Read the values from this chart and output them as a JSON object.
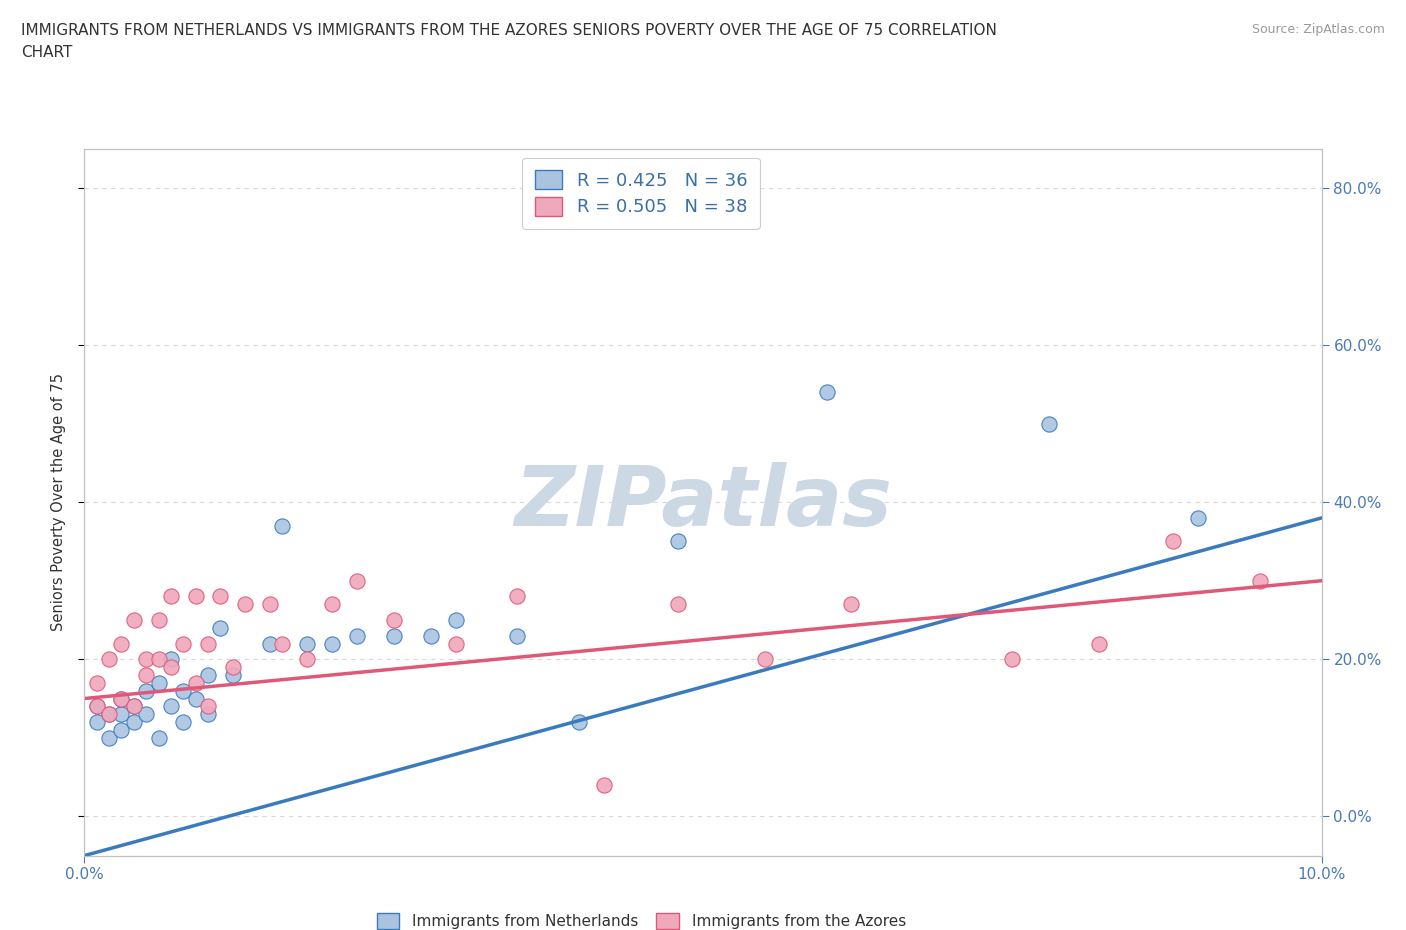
{
  "title_line1": "IMMIGRANTS FROM NETHERLANDS VS IMMIGRANTS FROM THE AZORES SENIORS POVERTY OVER THE AGE OF 75 CORRELATION",
  "title_line2": "CHART",
  "source_text": "Source: ZipAtlas.com",
  "ylabel": "Seniors Poverty Over the Age of 75",
  "xlim": [
    0.0,
    0.1
  ],
  "ylim": [
    -0.05,
    0.85
  ],
  "ytick_values": [
    0.0,
    0.2,
    0.4,
    0.6,
    0.8
  ],
  "xtick_values": [
    0.0,
    0.1
  ],
  "netherlands_color": "#aac4e0",
  "azores_color": "#f0a8bc",
  "netherlands_line_color": "#3a7abf",
  "azores_line_color": "#e05878",
  "netherlands_R": 0.425,
  "netherlands_N": 36,
  "azores_R": 0.505,
  "azores_N": 38,
  "netherlands_scatter_x": [
    0.001,
    0.001,
    0.002,
    0.002,
    0.003,
    0.003,
    0.003,
    0.004,
    0.004,
    0.005,
    0.005,
    0.006,
    0.006,
    0.007,
    0.007,
    0.008,
    0.008,
    0.009,
    0.01,
    0.01,
    0.011,
    0.012,
    0.015,
    0.016,
    0.018,
    0.02,
    0.022,
    0.025,
    0.028,
    0.03,
    0.035,
    0.04,
    0.048,
    0.06,
    0.078,
    0.09
  ],
  "netherlands_scatter_y": [
    0.14,
    0.12,
    0.13,
    0.1,
    0.13,
    0.15,
    0.11,
    0.14,
    0.12,
    0.13,
    0.16,
    0.1,
    0.17,
    0.2,
    0.14,
    0.16,
    0.12,
    0.15,
    0.13,
    0.18,
    0.24,
    0.18,
    0.22,
    0.37,
    0.22,
    0.22,
    0.23,
    0.23,
    0.23,
    0.25,
    0.23,
    0.12,
    0.35,
    0.54,
    0.5,
    0.38
  ],
  "azores_scatter_x": [
    0.001,
    0.001,
    0.002,
    0.002,
    0.003,
    0.003,
    0.004,
    0.004,
    0.005,
    0.005,
    0.006,
    0.006,
    0.007,
    0.007,
    0.008,
    0.009,
    0.009,
    0.01,
    0.01,
    0.011,
    0.012,
    0.013,
    0.015,
    0.016,
    0.018,
    0.02,
    0.022,
    0.025,
    0.03,
    0.035,
    0.042,
    0.048,
    0.055,
    0.062,
    0.075,
    0.082,
    0.088,
    0.095
  ],
  "azores_scatter_y": [
    0.14,
    0.17,
    0.13,
    0.2,
    0.15,
    0.22,
    0.14,
    0.25,
    0.18,
    0.2,
    0.2,
    0.25,
    0.28,
    0.19,
    0.22,
    0.17,
    0.28,
    0.22,
    0.14,
    0.28,
    0.19,
    0.27,
    0.27,
    0.22,
    0.2,
    0.27,
    0.3,
    0.25,
    0.22,
    0.28,
    0.04,
    0.27,
    0.2,
    0.27,
    0.2,
    0.22,
    0.35,
    0.3
  ],
  "background_color": "#ffffff",
  "watermark_text": "ZIPatlas",
  "watermark_color": "#cdd8e5",
  "grid_color": "#d8d8d8",
  "legend_label_netherlands": "Immigrants from Netherlands",
  "legend_label_azores": "Immigrants from the Azores",
  "nl_trend_x0": 0.0,
  "nl_trend_y0": -0.05,
  "nl_trend_x1": 0.1,
  "nl_trend_y1": 0.38,
  "az_trend_x0": 0.0,
  "az_trend_y0": 0.15,
  "az_trend_x1": 0.1,
  "az_trend_y1": 0.3
}
